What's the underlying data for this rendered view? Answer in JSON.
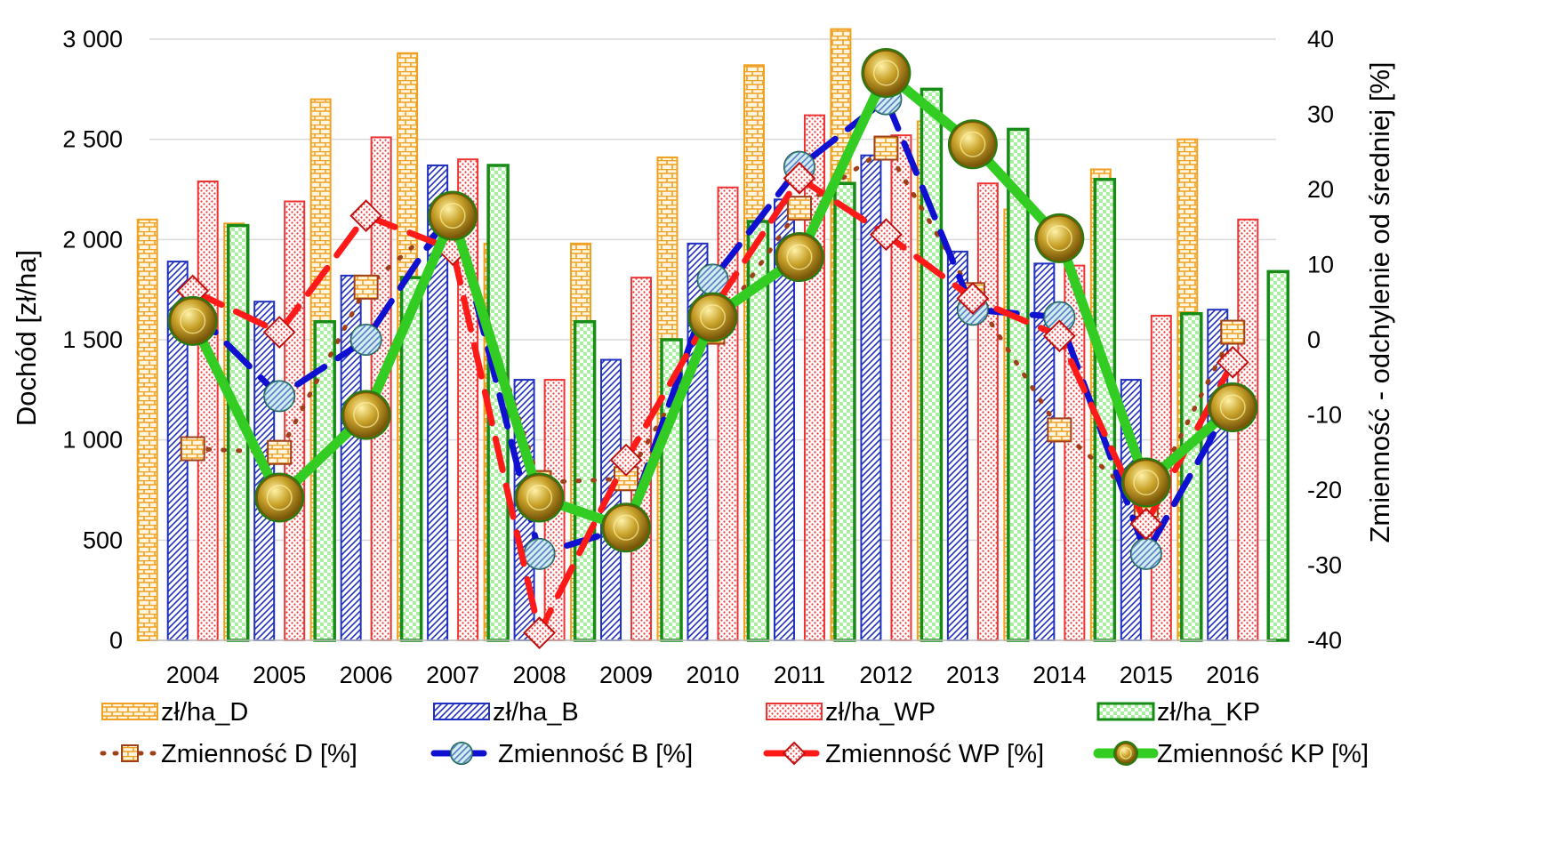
{
  "chart_data": {
    "type": "bar",
    "title": "",
    "categories": [
      "2004",
      "2005",
      "2006",
      "2007",
      "2008",
      "2009",
      "2010",
      "2011",
      "2012",
      "2013",
      "2014",
      "2015",
      "2016"
    ],
    "ylabel": "Dochód [zł/ha]",
    "ylabel_right": "Zmienność - odchylenie od średniej [%]",
    "ylim": [
      0,
      3000
    ],
    "ylim_right": [
      -40,
      40
    ],
    "y_ticks": [
      "0",
      "500",
      "1 000",
      "1 500",
      "2 000",
      "2 500",
      "3 000"
    ],
    "y_ticks_right": [
      "-40",
      "-30",
      "-20",
      "-10",
      "0",
      "10",
      "20",
      "30",
      "40"
    ],
    "grid": true,
    "legend_position": "bottom",
    "bar_series": [
      {
        "name": "zł/ha_D",
        "color": "#f0a020",
        "values": [
          2100,
          2080,
          2700,
          2930,
          1980,
          1980,
          2410,
          2870,
          3050,
          2590,
          2150,
          2350,
          2500
        ]
      },
      {
        "name": "zł/ha_B",
        "color": "#2030c0",
        "values": [
          1890,
          1690,
          1820,
          2370,
          1300,
          1400,
          1980,
          2200,
          2420,
          1940,
          1880,
          1300,
          1650
        ]
      },
      {
        "name": "zł/ha_WP",
        "color": "#ee3333",
        "values": [
          2290,
          2190,
          2510,
          2400,
          1300,
          1810,
          2260,
          2620,
          2520,
          2280,
          1870,
          1620,
          2100
        ]
      },
      {
        "name": "zł/ha_KP",
        "color": "#168c16",
        "values": [
          2070,
          1590,
          1810,
          2370,
          1590,
          1500,
          2090,
          2280,
          2750,
          2550,
          2300,
          1630,
          1840
        ]
      }
    ],
    "line_series": [
      {
        "name": "Zmienność D [%]",
        "color": "#a0401a",
        "style": "dotted",
        "values": [
          -14.5,
          -15,
          7,
          17,
          -19,
          -18.5,
          1,
          17.5,
          25.5,
          6,
          -12,
          -22,
          1
        ]
      },
      {
        "name": "Zmienność B [%]",
        "color": "#1010d0",
        "style": "dashed",
        "values": [
          4,
          -7.5,
          0,
          17.5,
          -28.5,
          -25,
          8,
          23,
          32,
          4,
          3,
          -28.5,
          -8
        ]
      },
      {
        "name": "Zmienność WP [%]",
        "color": "#ff1a1a",
        "style": "dashed",
        "values": [
          6.5,
          1,
          16.5,
          12,
          -39,
          -16,
          4,
          21.5,
          14,
          5.5,
          0.5,
          -24.5,
          -3
        ]
      },
      {
        "name": "Zmienność KP [%]",
        "color": "#33cc22",
        "style": "solid",
        "values": [
          2.5,
          -21,
          -10,
          16.5,
          -21,
          -25,
          3,
          11,
          35.5,
          26,
          13.5,
          -19,
          -9
        ]
      }
    ]
  }
}
